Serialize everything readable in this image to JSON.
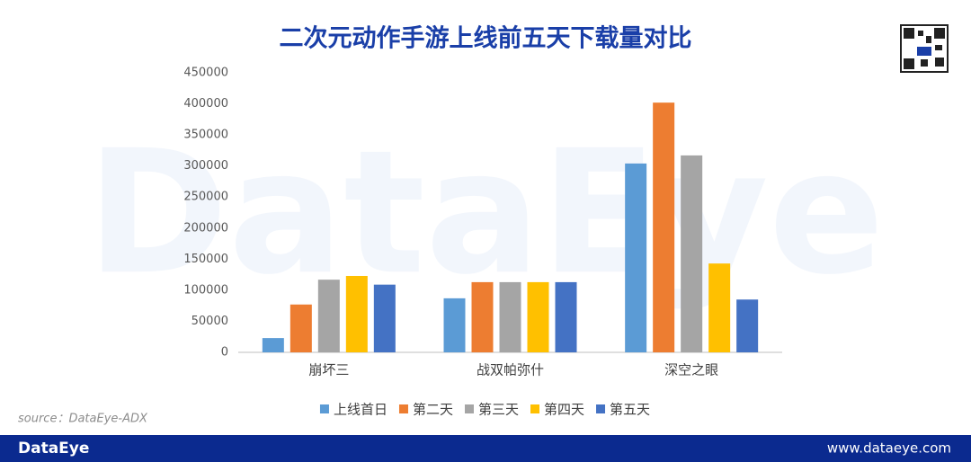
{
  "chart_data": {
    "type": "bar",
    "title": "二次元动作手游上线前五天下载量对比",
    "categories": [
      "崩坏三",
      "战双帕弥什",
      "深空之眼"
    ],
    "series": [
      {
        "name": "上线首日",
        "color": "#5b9bd5",
        "values": [
          23000,
          87000,
          304000
        ]
      },
      {
        "name": "第二天",
        "color": "#ed7d31",
        "values": [
          77000,
          113000,
          402000
        ]
      },
      {
        "name": "第三天",
        "color": "#a5a5a5",
        "values": [
          117000,
          113000,
          317000
        ]
      },
      {
        "name": "第四天",
        "color": "#ffc000",
        "values": [
          123000,
          113000,
          143000
        ]
      },
      {
        "name": "第五天",
        "color": "#4472c4",
        "values": [
          109000,
          113000,
          85000
        ]
      }
    ],
    "ylim": [
      0,
      450000
    ],
    "yticks": [
      0,
      50000,
      100000,
      150000,
      200000,
      250000,
      300000,
      350000,
      400000,
      450000
    ],
    "grid": false,
    "legend": "bottom"
  },
  "watermark": "DataEye",
  "source": "source：DataEye-ADX",
  "footer": {
    "brand": "DataEye",
    "url": "www.dataeye.com"
  }
}
